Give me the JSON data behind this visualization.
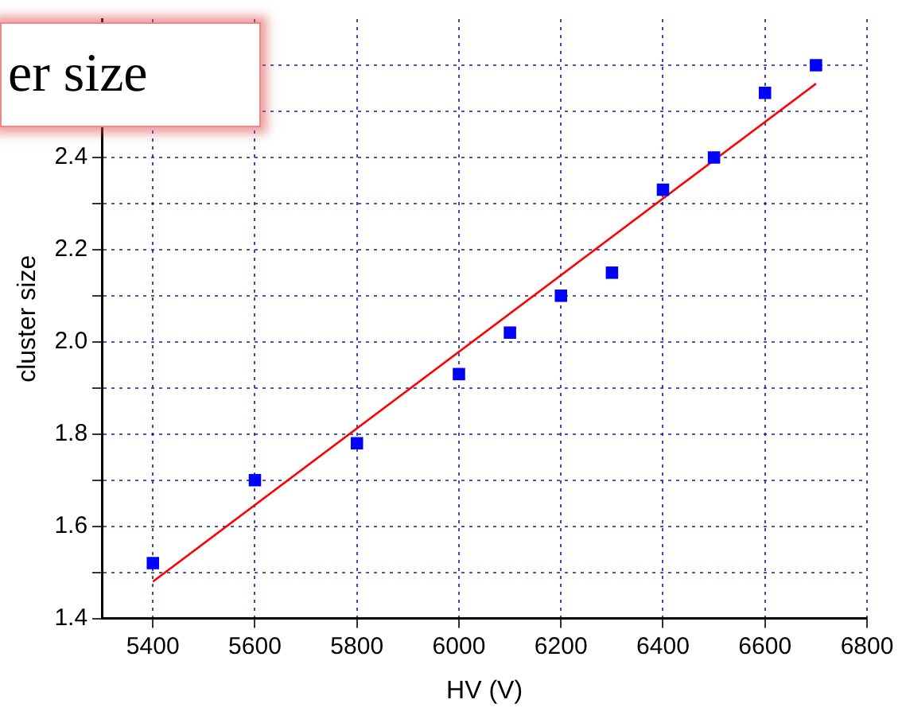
{
  "chart_data": {
    "type": "scatter",
    "xlabel": "HV (V)",
    "ylabel": "cluster size",
    "annotations": [
      "er size"
    ],
    "xlim": [
      5300,
      6800
    ],
    "xticks": [
      5400,
      5600,
      5800,
      6000,
      6200,
      6400,
      6600,
      6800
    ],
    "ylim": [
      1.4,
      2.7
    ],
    "yticks": [
      1.4,
      {
        "value": 1.5,
        "label": null
      },
      1.6,
      {
        "value": 1.7,
        "label": null
      },
      1.8,
      {
        "value": 1.9,
        "label": null
      },
      "2.0",
      {
        "value": 2.1,
        "label": null
      },
      2.2,
      {
        "value": 2.3,
        "label": null
      },
      2.4,
      {
        "value": 2.5,
        "label": null
      },
      {
        "value": 2.6,
        "label": null
      }
    ],
    "grid": true,
    "legend": false,
    "marker": "square",
    "series": [
      {
        "color": "#0000ff",
        "x": [
          5400,
          5600,
          5800,
          6000,
          6100,
          6200,
          6300,
          6400,
          6500,
          6600,
          6700
        ],
        "values": [
          1.52,
          1.7,
          1.78,
          1.93,
          2.02,
          2.1,
          2.15,
          2.33,
          2.4,
          2.54,
          2.6
        ]
      },
      {
        "type": "line",
        "color": "#ff0000",
        "marker": "none",
        "line_style": "solid",
        "x": [
          5400,
          6700
        ],
        "values": [
          1.48,
          2.56
        ]
      }
    ]
  }
}
